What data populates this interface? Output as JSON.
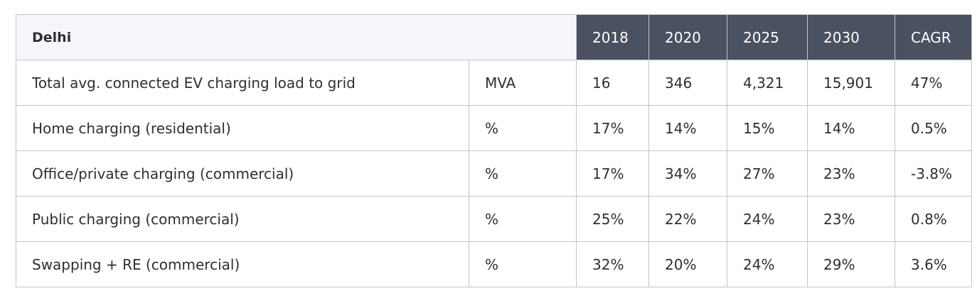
{
  "table": {
    "region": "Delhi",
    "years": [
      "2018",
      "2020",
      "2025",
      "2030",
      "CAGR"
    ],
    "rows": [
      {
        "label": "Total avg. connected EV charging load to grid",
        "unit": "MVA",
        "values": [
          "16",
          "346",
          "4,321",
          "15,901",
          "47%"
        ]
      },
      {
        "label": "Home charging (residential)",
        "unit": "%",
        "values": [
          "17%",
          "14%",
          "15%",
          "14%",
          "0.5%"
        ]
      },
      {
        "label": "Office/private charging (commercial)",
        "unit": "%",
        "values": [
          "17%",
          "34%",
          "27%",
          "23%",
          "-3.8%"
        ]
      },
      {
        "label": "Public charging (commercial)",
        "unit": "%",
        "values": [
          "25%",
          "22%",
          "24%",
          "23%",
          "0.8%"
        ]
      },
      {
        "label": "Swapping + RE (commercial)",
        "unit": "%",
        "values": [
          "32%",
          "20%",
          "24%",
          "29%",
          "3.6%"
        ]
      }
    ]
  }
}
